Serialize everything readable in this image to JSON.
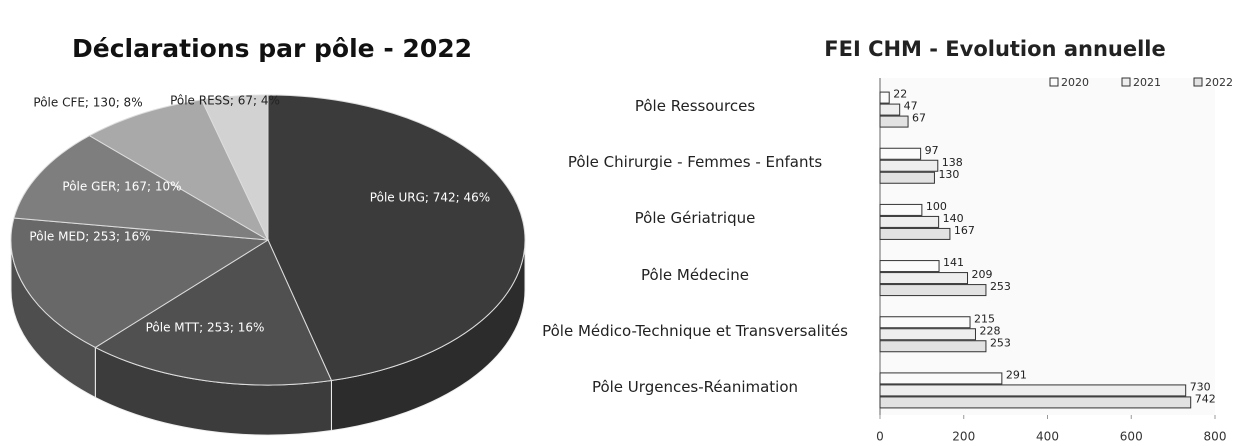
{
  "chart_data": [
    {
      "type": "pie",
      "title": "Déclarations par pôle - 2022",
      "values": [
        742,
        253,
        253,
        167,
        130,
        67
      ],
      "value_labels": [
        "Pôle URG; 742; 46%",
        "Pôle MTT; 253; 16%",
        "Pôle MED; 253; 16%",
        "Pôle GER; 167; 10%",
        "Pôle CFE; 130; 8%",
        "Pôle RESS; 67; 4%"
      ],
      "colors": [
        "#3b3b3b",
        "#505050",
        "#686868",
        "#7e7e7e",
        "#a9a9a9",
        "#d2d2d2"
      ]
    },
    {
      "type": "hbar",
      "title": "FEI CHM - Evolution annuelle",
      "categories": [
        "Pôle Ressources",
        "Pôle Chirurgie - Femmes - Enfants",
        "Pôle Gériatrique",
        "Pôle Médecine",
        "Pôle Médico-Technique et Transversalités",
        "Pôle Urgences-Réanimation"
      ],
      "series": [
        {
          "name": "2020",
          "color": "#fbfbfb",
          "values": [
            22,
            97,
            100,
            141,
            215,
            291
          ]
        },
        {
          "name": "2021",
          "color": "#eeeeee",
          "values": [
            47,
            138,
            140,
            209,
            228,
            730
          ]
        },
        {
          "name": "2022",
          "color": "#e2e2e2",
          "values": [
            67,
            130,
            167,
            253,
            253,
            742
          ]
        }
      ],
      "xlim": [
        0,
        800
      ],
      "xticks": [
        0,
        200,
        400,
        600,
        800
      ],
      "legend": "top-right"
    }
  ]
}
